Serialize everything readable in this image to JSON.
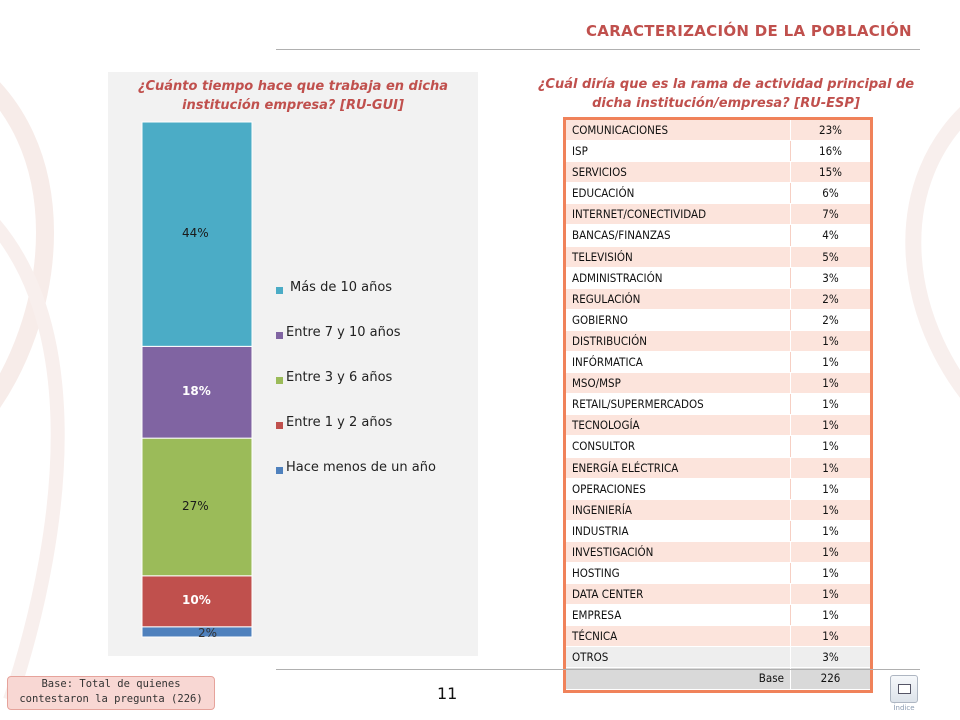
{
  "header": {
    "title": "CARACTERIZACIÓN DE LA POBLACIÓN"
  },
  "left_question": "¿Cuánto tiempo hace que trabaja en dicha institución empresa? [RU-GUI]",
  "right_question": "¿Cuál diría que es la rama de actividad principal de dicha institución/empresa? [RU-ESP]",
  "colors": {
    "accent": "#c0504d",
    "table_border": "#f0825a",
    "row_fill": "#fce4dc"
  },
  "chart_data": [
    {
      "type": "bar",
      "stacked": true,
      "title": "¿Cuánto tiempo hace que trabaja en dicha institución empresa? [RU-GUI]",
      "categories": [
        ""
      ],
      "series": [
        {
          "name": "Hace menos de un año",
          "values": [
            2
          ],
          "label": "2%",
          "color": "#4f81bd"
        },
        {
          "name": "Entre 1 y 2 años",
          "values": [
            10
          ],
          "label": "10%",
          "color": "#c0504d"
        },
        {
          "name": "Entre 3 y 6 años",
          "values": [
            27
          ],
          "label": "27%",
          "color": "#9bbb59"
        },
        {
          "name": "Entre 7 y 10 años",
          "values": [
            18
          ],
          "label": "18%",
          "color": "#8064a2"
        },
        {
          "name": "Más de 10 años",
          "values": [
            44
          ],
          "label": "44%",
          "color": "#4bacc6"
        }
      ],
      "legend_order": [
        "Más de 10 años",
        "Entre 7 y 10 años",
        "Entre 3 y 6 años",
        "Entre 1 y 2 años",
        "Hace menos de un año"
      ],
      "legend": "right",
      "grid": false
    },
    {
      "type": "table",
      "title": "¿Cuál diría que es la rama de actividad principal de dicha institución/empresa? [RU-ESP]",
      "rows": [
        {
          "label": "COMUNICACIONES",
          "value": "23%"
        },
        {
          "label": "ISP",
          "value": "16%"
        },
        {
          "label": "SERVICIOS",
          "value": "15%"
        },
        {
          "label": "EDUCACIÓN",
          "value": "6%"
        },
        {
          "label": "INTERNET/CONECTIVIDAD",
          "value": "7%"
        },
        {
          "label": "BANCAS/FINANZAS",
          "value": "4%"
        },
        {
          "label": "TELEVISIÓN",
          "value": "5%"
        },
        {
          "label": "ADMINISTRACIÓN",
          "value": "3%"
        },
        {
          "label": "REGULACIÓN",
          "value": "2%"
        },
        {
          "label": "GOBIERNO",
          "value": "2%"
        },
        {
          "label": "DISTRIBUCIÓN",
          "value": "1%"
        },
        {
          "label": "INFÓRMATICA",
          "value": "1%"
        },
        {
          "label": "MSO/MSP",
          "value": "1%"
        },
        {
          "label": "RETAIL/SUPERMERCADOS",
          "value": "1%"
        },
        {
          "label": "TECNOLOGÍA",
          "value": "1%"
        },
        {
          "label": "CONSULTOR",
          "value": "1%"
        },
        {
          "label": "ENERGÍA ELÉCTRICA",
          "value": "1%"
        },
        {
          "label": "OPERACIONES",
          "value": "1%"
        },
        {
          "label": "INGENIERÍA",
          "value": "1%"
        },
        {
          "label": "INDUSTRIA",
          "value": "1%"
        },
        {
          "label": "INVESTIGACIÓN",
          "value": "1%"
        },
        {
          "label": "HOSTING",
          "value": "1%"
        },
        {
          "label": "DATA CENTER",
          "value": "1%"
        },
        {
          "label": "EMPRESA",
          "value": "1%"
        },
        {
          "label": "TÉCNICA",
          "value": "1%"
        },
        {
          "label": "OTROS",
          "value": "3%"
        }
      ],
      "base": {
        "label": "Base",
        "value": "226"
      }
    }
  ],
  "footer": {
    "base_note_line1": "Base: Total de quienes",
    "base_note_line2": "contestaron  la pregunta (226)",
    "page_number": "11",
    "index_label": "Índice"
  }
}
